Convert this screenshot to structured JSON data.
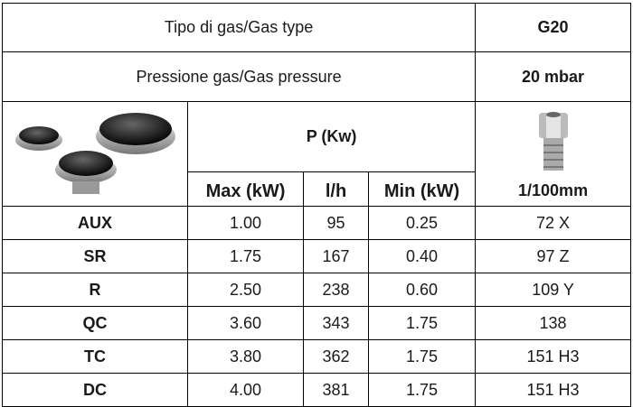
{
  "header": {
    "gas_type_label": "Tipo di gas/Gas type",
    "gas_type": "G20",
    "pressure_label": "Pressione gas/Gas pressure",
    "pressure": "20 mbar",
    "power_label": "P (Kw)",
    "injector_label": "1/100mm",
    "columns": [
      "Max (kW)",
      "l/h",
      "Min (kW)"
    ]
  },
  "table": {
    "rows": [
      [
        "AUX",
        "1.00",
        "95",
        "0.25",
        "72 X"
      ],
      [
        "SR",
        "1.75",
        "167",
        "0.40",
        "97 Z"
      ],
      [
        "R",
        "2.50",
        "238",
        "0.60",
        "109 Y"
      ],
      [
        "QC",
        "3.60",
        "343",
        "1.75",
        "138"
      ],
      [
        "TC",
        "3.80",
        "362",
        "1.75",
        "151 H3"
      ],
      [
        "DC",
        "4.00",
        "381",
        "1.75",
        "151 H3"
      ]
    ]
  }
}
